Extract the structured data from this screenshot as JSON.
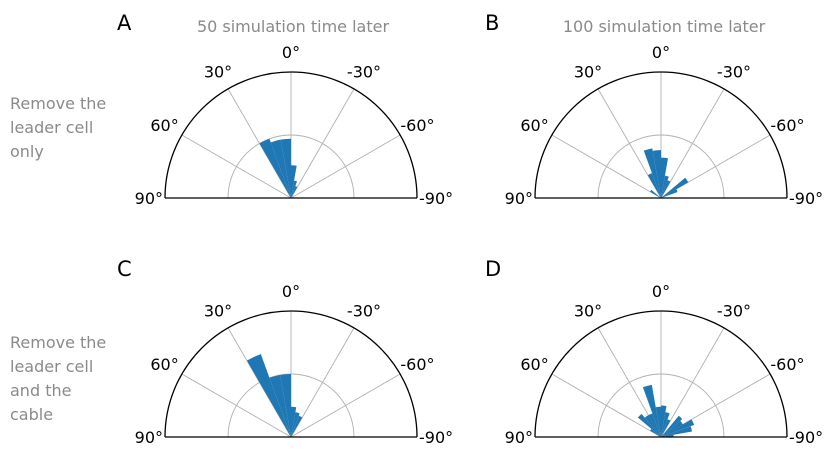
{
  "column_titles": [
    "50 simulation time later",
    "100 simulation time later"
  ],
  "row_labels": [
    [
      "Remove the",
      "leader cell",
      "only"
    ],
    [
      "Remove the",
      "leader cell",
      "and the",
      "cable"
    ]
  ],
  "angle_ticks": [
    {
      "angle": 0,
      "label": "0°"
    },
    {
      "angle": 30,
      "label": "30°"
    },
    {
      "angle": -30,
      "label": "-30°"
    },
    {
      "angle": 60,
      "label": "60°"
    },
    {
      "angle": -60,
      "label": "-60°"
    },
    {
      "angle": 90,
      "label": "90°"
    },
    {
      "angle": -90,
      "label": "-90°"
    }
  ],
  "colors": {
    "bar": "#1f77b4",
    "grid": "#b0b0b0",
    "outline": "#000000",
    "muted_text": "#8a8a8a"
  },
  "chart_data": [
    {
      "panel": "A",
      "type": "polar-histogram",
      "theta_range": [
        -90,
        90
      ],
      "bin_width_deg": 10,
      "rmax": 1.0,
      "radial_grid": [
        0.5
      ],
      "bins": [
        {
          "center": 25,
          "r": 0.5
        },
        {
          "center": 15,
          "r": 0.47
        },
        {
          "center": 5,
          "r": 0.47
        },
        {
          "center": -5,
          "r": 0.26
        },
        {
          "center": -15,
          "r": 0.14
        },
        {
          "center": -25,
          "r": 0.1
        }
      ]
    },
    {
      "panel": "B",
      "type": "polar-histogram",
      "theta_range": [
        -90,
        90
      ],
      "bin_width_deg": 10,
      "rmax": 1.0,
      "radial_grid": [
        0.5
      ],
      "bins": [
        {
          "center": 25,
          "r": 0.21
        },
        {
          "center": 15,
          "r": 0.4
        },
        {
          "center": 5,
          "r": 0.38
        },
        {
          "center": -5,
          "r": 0.32
        },
        {
          "center": -15,
          "r": 0.18
        },
        {
          "center": -25,
          "r": 0.15
        },
        {
          "center": -55,
          "r": 0.25
        },
        {
          "center": -65,
          "r": 0.14
        },
        {
          "center": 55,
          "r": 0.1
        }
      ]
    },
    {
      "panel": "C",
      "type": "polar-histogram",
      "theta_range": [
        -90,
        90
      ],
      "bin_width_deg": 10,
      "rmax": 1.0,
      "radial_grid": [
        0.5
      ],
      "bins": [
        {
          "center": 25,
          "r": 0.7
        },
        {
          "center": 15,
          "r": 0.5
        },
        {
          "center": 5,
          "r": 0.5
        },
        {
          "center": -5,
          "r": 0.24
        },
        {
          "center": -15,
          "r": 0.2
        },
        {
          "center": -25,
          "r": 0.18
        }
      ]
    },
    {
      "panel": "D",
      "type": "polar-histogram",
      "theta_range": [
        -90,
        90
      ],
      "bin_width_deg": 10,
      "rmax": 1.0,
      "radial_grid": [
        0.5
      ],
      "bins": [
        {
          "center": 45,
          "r": 0.24
        },
        {
          "center": 35,
          "r": 0.2
        },
        {
          "center": 25,
          "r": 0.2
        },
        {
          "center": 15,
          "r": 0.42
        },
        {
          "center": 5,
          "r": 0.24
        },
        {
          "center": -5,
          "r": 0.25
        },
        {
          "center": -15,
          "r": 0.2
        },
        {
          "center": -25,
          "r": 0.15
        },
        {
          "center": -45,
          "r": 0.22
        },
        {
          "center": -55,
          "r": 0.2
        },
        {
          "center": -65,
          "r": 0.28
        },
        {
          "center": -75,
          "r": 0.25
        },
        {
          "center": 55,
          "r": 0.1
        },
        {
          "center": -85,
          "r": 0.1
        }
      ]
    }
  ]
}
